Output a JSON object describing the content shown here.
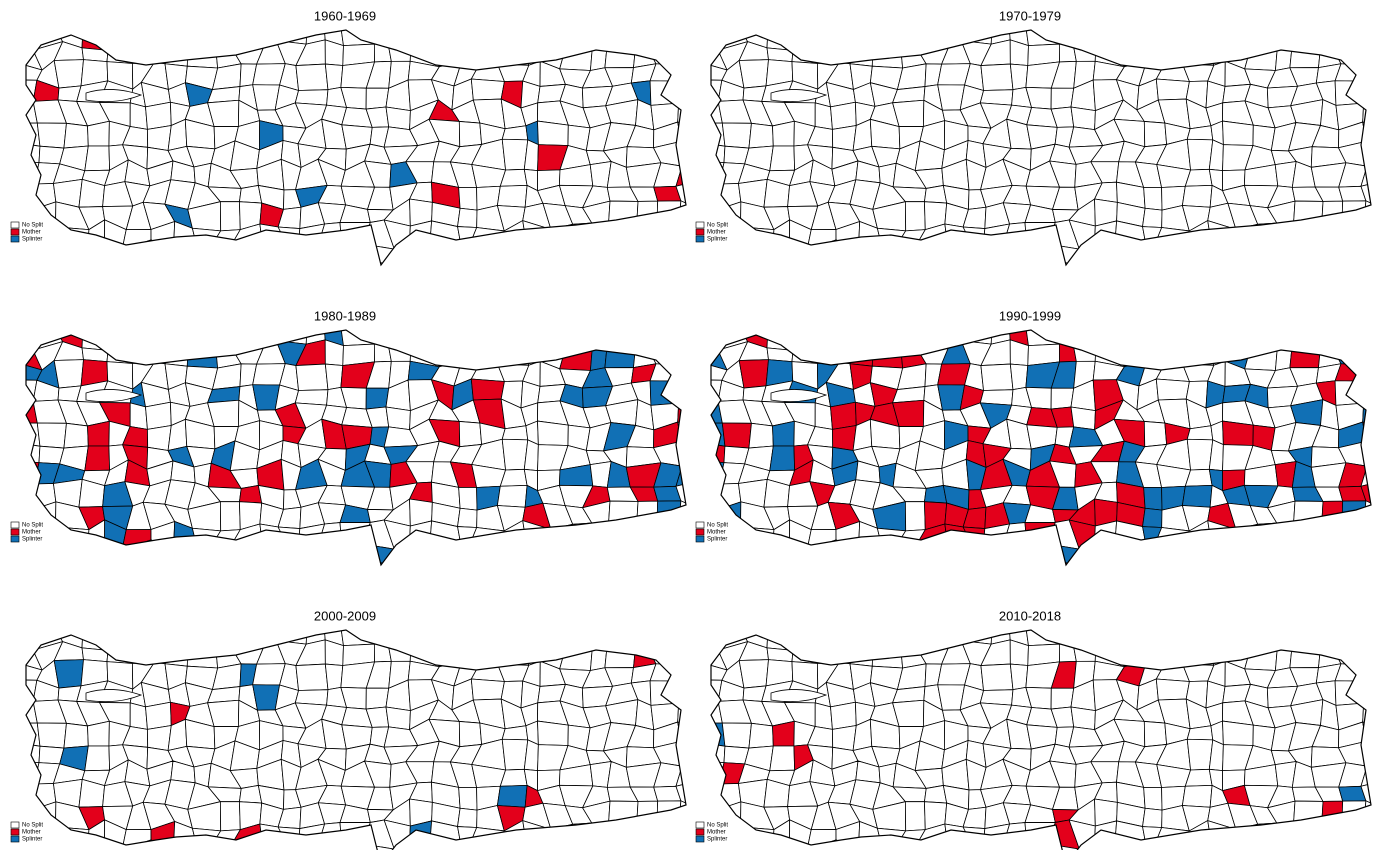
{
  "panels": [
    {
      "title": "1960-1969",
      "legend": [
        "No Split",
        "Mother",
        "Splinter"
      ]
    },
    {
      "title": "1970-1979",
      "legend": [
        "No Split",
        "Mother",
        "Splinter"
      ]
    },
    {
      "title": "1980-1989",
      "legend": [
        "No Split",
        "Mother",
        "Splinter"
      ]
    },
    {
      "title": "1990-1999",
      "legend": [
        "No Split",
        "Mother",
        "Splinter"
      ]
    },
    {
      "title": "2000-2009",
      "legend": [
        "No Split",
        "Mother",
        "Splinter"
      ]
    },
    {
      "title": "2010-2018",
      "legend": [
        "No Split",
        "Mother",
        "Splinter"
      ]
    }
  ]
}
